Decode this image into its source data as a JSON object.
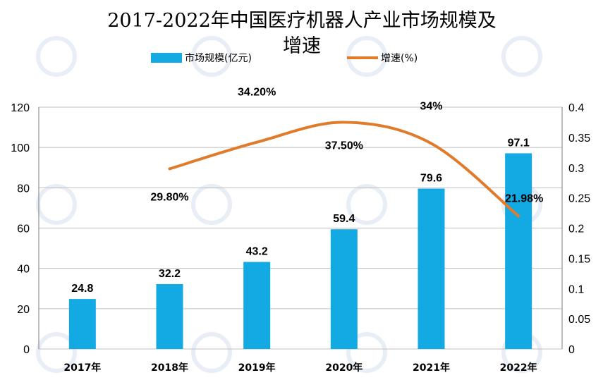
{
  "chart_data": {
    "type": "bar",
    "title_line1": "2017-2022年中国医疗机器人产业市场规模及",
    "title_line2": "增速",
    "categories": [
      "2017年",
      "2018年",
      "2019年",
      "2020年",
      "2021年",
      "2022年"
    ],
    "series": [
      {
        "name": "市场规模(亿元)",
        "type": "bar",
        "axis": "left",
        "color": "#13a9e2",
        "values": [
          24.8,
          32.2,
          43.2,
          59.4,
          79.6,
          97.1
        ],
        "labels": [
          "24.8",
          "32.2",
          "43.2",
          "59.4",
          "79.6",
          "97.1"
        ]
      },
      {
        "name": "增速(%)",
        "type": "line",
        "axis": "right",
        "color": "#e07b2c",
        "smooth": true,
        "values": [
          null,
          0.298,
          0.342,
          0.375,
          0.34,
          0.2198
        ],
        "labels": [
          "",
          "29.80%",
          "34.20%",
          "37.50%",
          "34%",
          "21.98%"
        ]
      }
    ],
    "left_axis": {
      "ylim": [
        0,
        120
      ],
      "ticks": [
        "0",
        "20",
        "40",
        "60",
        "80",
        "100",
        "120"
      ]
    },
    "right_axis": {
      "ylim": [
        0,
        0.4
      ],
      "ticks": [
        "0",
        "0.05",
        "0.1",
        "0.15",
        "0.2",
        "0.25",
        "0.3",
        "0.35",
        "0.4"
      ]
    },
    "grid": true,
    "legend_position": "top"
  }
}
